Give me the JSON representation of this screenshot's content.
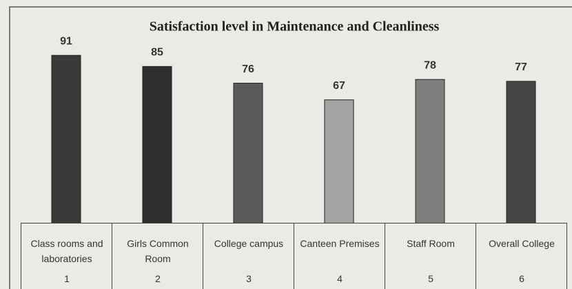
{
  "chart_data": {
    "type": "bar",
    "title": "Satisfaction level in Maintenance and Cleanliness",
    "categories": [
      "Class rooms and laboratories",
      "Girls Common Room",
      "College campus",
      "Canteen Premises",
      "Staff Room",
      "Overall College"
    ],
    "category_numbers": [
      1,
      2,
      3,
      4,
      5,
      6
    ],
    "values": [
      91,
      85,
      76,
      67,
      78,
      77
    ],
    "colors": [
      "#3a3a3a",
      "#2f2f2f",
      "#5a5a5a",
      "#a3a3a3",
      "#7e7e7e",
      "#444444"
    ],
    "ylim": [
      0,
      100
    ]
  }
}
